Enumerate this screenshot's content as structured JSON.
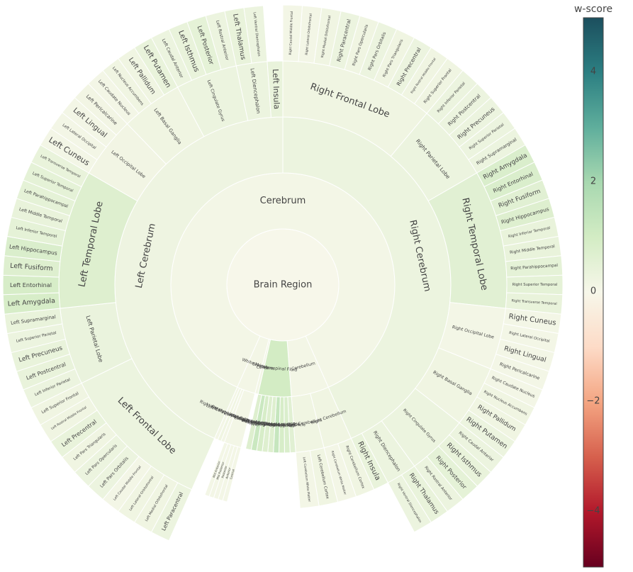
{
  "chart_data": {
    "type": "sunburst",
    "root": {
      "label": "Brain Region",
      "value": 0.0,
      "children": [
        {
          "label": "Cerebrum",
          "value": 0.1,
          "children": [
            {
              "label": "Left Cerebrum",
              "value": 0.25,
              "children": [
                {
                  "label": "Left Frontal Lobe",
                  "value": 0.3,
                  "children": [
                    {
                      "label": "Left Paracentral",
                      "value": 0.3
                    },
                    {
                      "label": "Left Medial Orbitofrontal",
                      "value": 0.2
                    },
                    {
                      "label": "Left Lateral Orbitofrontal",
                      "value": 0.2
                    },
                    {
                      "label": "Left Caudal Middle Frontal",
                      "value": 0.1
                    },
                    {
                      "label": "Left Pars Orbitalis",
                      "value": 0.3
                    },
                    {
                      "label": "Left Pars Opercularis",
                      "value": 0.3
                    },
                    {
                      "label": "Left Pars Triangularis",
                      "value": 0.2
                    },
                    {
                      "label": "Left Precentral",
                      "value": 0.4
                    },
                    {
                      "label": "Left Rostral Middle Frontal",
                      "value": 0.2
                    },
                    {
                      "label": "Left Superior Frontal",
                      "value": 0.2
                    }
                  ]
                },
                {
                  "label": "Left Parietal Lobe",
                  "value": 0.35,
                  "children": [
                    {
                      "label": "Left Inferior Parietal",
                      "value": 0.3
                    },
                    {
                      "label": "Left Postcentral",
                      "value": 0.4
                    },
                    {
                      "label": "Left Precuneus",
                      "value": 0.4
                    },
                    {
                      "label": "Left Superior Parietal",
                      "value": 0.3
                    },
                    {
                      "label": "Left Supramarginal",
                      "value": 0.4
                    }
                  ]
                },
                {
                  "label": "Left Temporal Lobe",
                  "value": 0.7,
                  "children": [
                    {
                      "label": "Left Amygdala",
                      "value": 0.9
                    },
                    {
                      "label": "Left Entorhinal",
                      "value": 0.9
                    },
                    {
                      "label": "Left Fusiform",
                      "value": 0.7
                    },
                    {
                      "label": "Left Hippocampus",
                      "value": 0.8
                    },
                    {
                      "label": "Left Inferior Temporal",
                      "value": 0.5
                    },
                    {
                      "label": "Left Middle Temporal",
                      "value": 0.4
                    },
                    {
                      "label": "Left Parahippocampal",
                      "value": 0.5
                    },
                    {
                      "label": "Left Superior Temporal",
                      "value": 0.5
                    },
                    {
                      "label": "Left Transverse Temporal",
                      "value": 0.4
                    }
                  ]
                },
                {
                  "label": "Left Occipital Lobe",
                  "value": 0.15,
                  "children": [
                    {
                      "label": "Left Cuneus",
                      "value": 0.1
                    },
                    {
                      "label": "Left Lateral Occipital",
                      "value": 0.1
                    },
                    {
                      "label": "Left Lingual",
                      "value": 0.1
                    },
                    {
                      "label": "Left Pericalcarine",
                      "value": 0.15
                    }
                  ]
                },
                {
                  "label": "Left Basal Ganglia",
                  "value": 0.2,
                  "children": [
                    {
                      "label": "Left Caudate Nucleus",
                      "value": 0.1
                    },
                    {
                      "label": "Left Nucleus Accumbens",
                      "value": 0.2
                    },
                    {
                      "label": "Left Pallidum",
                      "value": 0.2
                    },
                    {
                      "label": "Left Putamen",
                      "value": 0.4
                    }
                  ]
                },
                {
                  "label": "Left Cingulate Gyrus",
                  "value": 0.3,
                  "children": [
                    {
                      "label": "Left Caudal Anterior",
                      "value": 0.3
                    },
                    {
                      "label": "Left Isthmus",
                      "value": 0.4
                    },
                    {
                      "label": "Left Posterior",
                      "value": 0.5
                    },
                    {
                      "label": "Left Rostral Anterior",
                      "value": 0.3
                    }
                  ]
                },
                {
                  "label": "Left Diencephalon",
                  "value": 0.3,
                  "children": [
                    {
                      "label": "Left Thalamus",
                      "value": 0.4
                    },
                    {
                      "label": "Left Ventral Diencephalon",
                      "value": 0.3
                    }
                  ]
                },
                {
                  "label": "Left Insula",
                  "value": 0.4,
                  "children": []
                }
              ]
            },
            {
              "label": "Right Cerebrum",
              "value": 0.3,
              "children": [
                {
                  "label": "Right Frontal Lobe",
                  "value": 0.2,
                  "children": [
                    {
                      "label": "Right Caudal Middle Frontal",
                      "value": 0.1
                    },
                    {
                      "label": "Right Lateral Orbitofrontal",
                      "value": 0.1
                    },
                    {
                      "label": "Right Medial Orbitofrontal",
                      "value": 0.2
                    },
                    {
                      "label": "Right Paracentral",
                      "value": 0.3
                    },
                    {
                      "label": "Right Pars Opercularis",
                      "value": 0.2
                    },
                    {
                      "label": "Right Pars Orbitalis",
                      "value": 0.3
                    },
                    {
                      "label": "Right Pars Triangularis",
                      "value": 0.2
                    },
                    {
                      "label": "Right Precentral",
                      "value": 0.3
                    },
                    {
                      "label": "Right Rostral Middle Frontal",
                      "value": 0.2
                    },
                    {
                      "label": "Right Superior Frontal",
                      "value": 0.2
                    }
                  ]
                },
                {
                  "label": "Right Parietal Lobe",
                  "value": 0.3,
                  "children": [
                    {
                      "label": "Right Inferior Parietal",
                      "value": 0.3
                    },
                    {
                      "label": "Right Postcentral",
                      "value": 0.3
                    },
                    {
                      "label": "Right Precuneus",
                      "value": 0.3
                    },
                    {
                      "label": "Right Superior Parietal",
                      "value": 0.3
                    },
                    {
                      "label": "Right Supramarginal",
                      "value": 0.3
                    }
                  ]
                },
                {
                  "label": "Right Temporal Lobe",
                  "value": 0.6,
                  "children": [
                    {
                      "label": "Right Amygdala",
                      "value": 0.8
                    },
                    {
                      "label": "Right Entorhinal",
                      "value": 0.8
                    },
                    {
                      "label": "Right Fusiform",
                      "value": 0.6
                    },
                    {
                      "label": "Right Hippocampus",
                      "value": 0.7
                    },
                    {
                      "label": "Right Inferior Temporal",
                      "value": 0.4
                    },
                    {
                      "label": "Right Middle Temporal",
                      "value": 0.4
                    },
                    {
                      "label": "Right Parahippocampal",
                      "value": 0.5
                    },
                    {
                      "label": "Right Superior Temporal",
                      "value": 0.5
                    },
                    {
                      "label": "Right Transverse Temporal",
                      "value": 0.4
                    }
                  ]
                },
                {
                  "label": "Right Occipital Lobe",
                  "value": 0.1,
                  "children": [
                    {
                      "label": "Right Cuneus",
                      "value": 0.1
                    },
                    {
                      "label": "Right Lateral Occipital",
                      "value": 0.1
                    },
                    {
                      "label": "Right Lingual",
                      "value": 0.1
                    },
                    {
                      "label": "Right Pericalcarine",
                      "value": 0.1
                    }
                  ]
                },
                {
                  "label": "Right Basal Ganglia",
                  "value": 0.2,
                  "children": [
                    {
                      "label": "Right Caudate Nucleus",
                      "value": 0.1
                    },
                    {
                      "label": "Right Nucleus Accumbens",
                      "value": 0.2
                    },
                    {
                      "label": "Right Pallidum",
                      "value": 0.2
                    },
                    {
                      "label": "Right Putamen",
                      "value": 0.3
                    }
                  ]
                },
                {
                  "label": "Right Cingulate Gyrus",
                  "value": 0.3,
                  "children": [
                    {
                      "label": "Right Caudal Anterior",
                      "value": 0.3
                    },
                    {
                      "label": "Right Isthmus",
                      "value": 0.4
                    },
                    {
                      "label": "Right Posterior",
                      "value": 0.5
                    },
                    {
                      "label": "Right Rostral Anterior",
                      "value": 0.3
                    }
                  ]
                },
                {
                  "label": "Right Diencephalon",
                  "value": 0.3,
                  "children": [
                    {
                      "label": "Right Thalamus",
                      "value": 0.4
                    },
                    {
                      "label": "Right Ventral Diencephalon",
                      "value": 0.3
                    }
                  ]
                },
                {
                  "label": "Right Insula",
                  "value": 0.4,
                  "children": []
                }
              ]
            }
          ]
        },
        {
          "label": "Cerebellum",
          "value": 0.1,
          "children": [
            {
              "label": "Right Cerebellum",
              "value": 0.2,
              "children": [
                {
                  "label": "Right Cerebellum Cortex",
                  "value": 0.2
                },
                {
                  "label": "Right Cerebellum White Matter",
                  "value": 0.1
                }
              ]
            },
            {
              "label": "Left Cerebellum",
              "value": 0.2,
              "children": [
                {
                  "label": "Left Cerebellum Cortex",
                  "value": 0.2
                },
                {
                  "label": "Left Cerebellum White Matter",
                  "value": 0.1
                }
              ]
            }
          ]
        },
        {
          "label": "Cerebrospinal Fluid",
          "value": 1.0,
          "children": [
            {
              "label": "CSF",
              "value": 0.6,
              "children": []
            },
            {
              "label": "3rd Ventricle",
              "value": 0.8,
              "children": []
            },
            {
              "label": "Right Lateral Ventricle",
              "value": 0.9,
              "children": []
            },
            {
              "label": "Right Inf Lat Vent",
              "value": 1.3,
              "children": []
            },
            {
              "label": "Right Choroid Plexus",
              "value": 0.7,
              "children": []
            },
            {
              "label": "4th Ventricle",
              "value": 0.7,
              "children": []
            },
            {
              "label": "Left Lateral Ventricle",
              "value": 0.9,
              "children": []
            },
            {
              "label": "Left Inf Lat Vent",
              "value": 1.2,
              "children": []
            },
            {
              "label": "Left Choroid Plexus",
              "value": 0.7,
              "children": []
            }
          ]
        },
        {
          "label": "Brainstem",
          "value": 0.1,
          "children": []
        },
        {
          "label": "White Matter",
          "value": 0.1,
          "children": [
            {
              "label": "Corpus Callosum",
              "value": 0.1,
              "children": [
                {
                  "label": "Central",
                  "value": 0.1
                },
                {
                  "label": "Anterior",
                  "value": 0.1
                },
                {
                  "label": "Posterior",
                  "value": 0.1
                },
                {
                  "label": "Mid Posterior",
                  "value": 0.1
                },
                {
                  "label": "Mid Anterior",
                  "value": 0.1
                }
              ]
            },
            {
              "label": "Left Cerebral White Matter",
              "value": 0.1,
              "children": []
            },
            {
              "label": "WM Hypointensities",
              "value": 0.2,
              "children": []
            },
            {
              "label": "Right Cerebral White Matter",
              "value": 0.1,
              "children": []
            }
          ]
        }
      ]
    },
    "colorbar": {
      "title": "w-score",
      "range": [
        -5,
        5
      ],
      "ticks": [
        4,
        2,
        0,
        -2,
        -4
      ],
      "colorscale": [
        "#67001f",
        "#b2182b",
        "#d6604d",
        "#f4a582",
        "#fddbc7",
        "#f7f7ea",
        "#d3ecc4",
        "#a8d8b0",
        "#5fae9c",
        "#2c7f82",
        "#1c4f5e"
      ]
    }
  }
}
